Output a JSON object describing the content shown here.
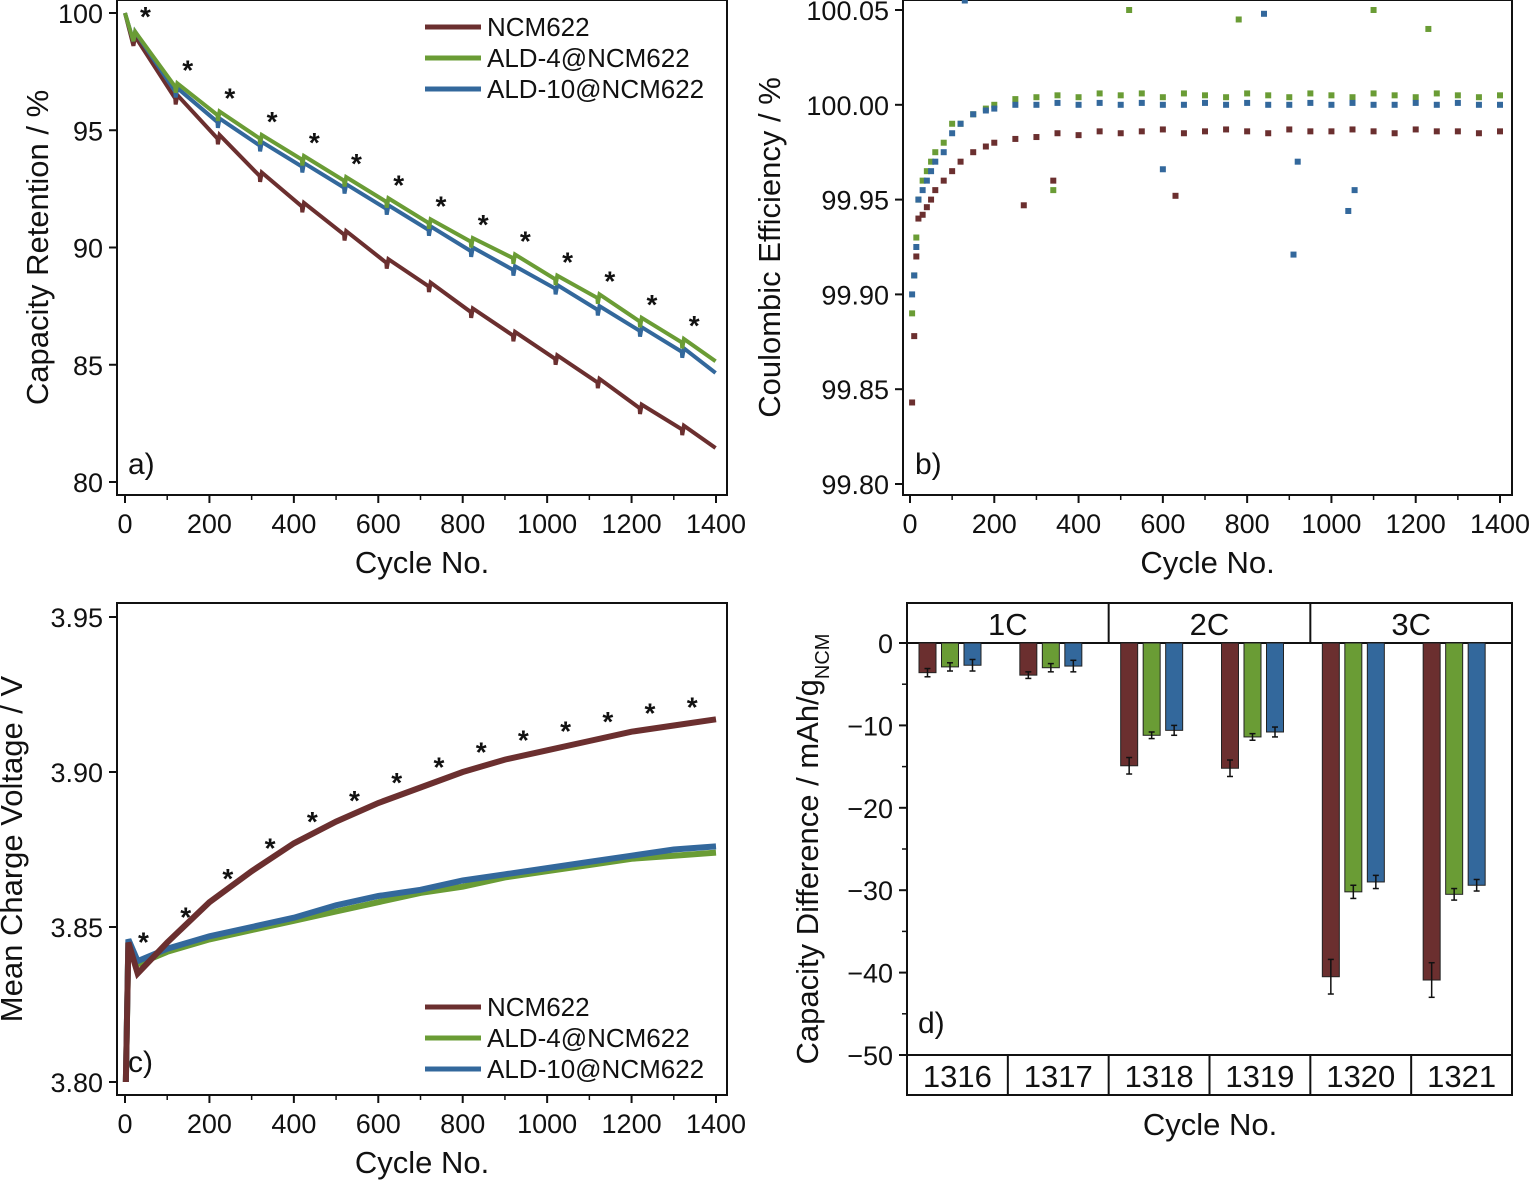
{
  "colors": {
    "NCM622": "#6b2f2f",
    "ALD-4@NCM622": "#6a9c35",
    "ALD-10@NCM622": "#33689c"
  },
  "chart_data": [
    {
      "panel": "a)",
      "type": "line",
      "xlabel": "Cycle No.",
      "ylabel": "Capacity Retention / %",
      "xlim": [
        0,
        1400
      ],
      "ylim": [
        80,
        100
      ],
      "xticks": [
        0,
        200,
        400,
        600,
        800,
        1000,
        1200,
        1400
      ],
      "yticks": [
        80,
        85,
        90,
        95,
        100
      ],
      "legend": "top-right",
      "asterisk_cycles": [
        20,
        120,
        220,
        320,
        420,
        520,
        620,
        720,
        820,
        920,
        1020,
        1120,
        1220,
        1320
      ],
      "segment_start_cycles": [
        20,
        120,
        220,
        320,
        420,
        520,
        620,
        720,
        820,
        920,
        1020,
        1120,
        1220,
        1320,
        1400
      ],
      "series": [
        {
          "name": "NCM622",
          "values": [
            99.0,
            96.5,
            94.8,
            93.2,
            91.9,
            90.7,
            89.5,
            88.5,
            87.4,
            86.4,
            85.4,
            84.4,
            83.3,
            82.4,
            81.6
          ]
        },
        {
          "name": "ALD-4@NCM622",
          "values": [
            99.2,
            97.0,
            95.8,
            94.8,
            93.9,
            93.0,
            92.1,
            91.2,
            90.4,
            89.7,
            88.8,
            88.0,
            87.0,
            86.1,
            85.3
          ]
        },
        {
          "name": "ALD-10@NCM622",
          "values": [
            99.2,
            96.8,
            95.5,
            94.5,
            93.6,
            92.7,
            91.8,
            90.9,
            90.0,
            89.2,
            88.4,
            87.5,
            86.6,
            85.7,
            84.8
          ]
        }
      ]
    },
    {
      "panel": "b)",
      "type": "scatter",
      "xlabel": "Cycle No.",
      "ylabel": "Coulombic Efficiency / %",
      "xlim": [
        0,
        1400
      ],
      "ylim": [
        99.8,
        100.05
      ],
      "xticks": [
        0,
        200,
        400,
        600,
        800,
        1000,
        1200,
        1400
      ],
      "yticks": [
        "99.80",
        "99.85",
        "99.90",
        "99.95",
        "100.00",
        "100.05"
      ],
      "x": [
        5,
        10,
        15,
        20,
        30,
        40,
        50,
        60,
        80,
        100,
        120,
        150,
        180,
        200,
        250,
        300,
        350,
        400,
        450,
        500,
        550,
        600,
        650,
        700,
        750,
        800,
        850,
        900,
        950,
        1000,
        1050,
        1100,
        1150,
        1200,
        1250,
        1300,
        1350,
        1400
      ],
      "series": [
        {
          "name": "NCM622",
          "values": [
            99.843,
            99.878,
            99.92,
            99.94,
            99.942,
            99.946,
            99.95,
            99.955,
            99.96,
            99.965,
            99.97,
            99.975,
            99.978,
            99.98,
            99.982,
            99.983,
            99.985,
            99.984,
            99.986,
            99.985,
            99.986,
            99.987,
            99.985,
            99.986,
            99.987,
            99.986,
            99.985,
            99.987,
            99.986,
            99.986,
            99.987,
            99.986,
            99.985,
            99.987,
            99.986,
            99.986,
            99.985,
            99.986
          ],
          "outliers": [
            [
              270,
              99.947
            ],
            [
              630,
              99.952
            ],
            [
              340,
              99.96
            ]
          ]
        },
        {
          "name": "ALD-4@NCM622",
          "values": [
            99.89,
            99.91,
            99.93,
            99.95,
            99.96,
            99.965,
            99.97,
            99.975,
            99.98,
            99.99,
            99.99,
            99.995,
            99.998,
            100.0,
            100.003,
            100.004,
            100.005,
            100.004,
            100.006,
            100.005,
            100.006,
            100.004,
            100.006,
            100.005,
            100.004,
            100.006,
            100.005,
            100.004,
            100.006,
            100.005,
            100.004,
            100.006,
            100.005,
            100.004,
            100.006,
            100.005,
            100.004,
            100.005
          ],
          "outliers": [
            [
              520,
              100.05
            ],
            [
              1100,
              100.05
            ],
            [
              340,
              99.955
            ],
            [
              780,
              100.045
            ],
            [
              1230,
              100.04
            ]
          ]
        },
        {
          "name": "ALD-10@NCM622",
          "values": [
            99.9,
            99.91,
            99.925,
            99.95,
            99.955,
            99.96,
            99.965,
            99.97,
            99.975,
            99.985,
            99.99,
            99.995,
            99.997,
            99.998,
            100.0,
            100.0,
            100.001,
            100.0,
            100.001,
            100.0,
            100.001,
            100.0,
            100.0,
            100.001,
            100.0,
            100.001,
            100.0,
            100.0,
            100.001,
            100.0,
            100.001,
            100.0,
            100.0,
            100.001,
            100.0,
            100.001,
            100.0,
            100.0
          ],
          "outliers": [
            [
              910,
              99.921
            ],
            [
              1040,
              99.944
            ],
            [
              1055,
              99.955
            ],
            [
              600,
              99.966
            ],
            [
              920,
              99.97
            ],
            [
              130,
              100.055
            ],
            [
              840,
              100.048
            ]
          ]
        }
      ]
    },
    {
      "panel": "c)",
      "type": "line",
      "xlabel": "Cycle No.",
      "ylabel": "Mean Charge Voltage / V",
      "xlim": [
        0,
        1400
      ],
      "ylim": [
        3.8,
        3.95
      ],
      "xticks": [
        0,
        200,
        400,
        600,
        800,
        1000,
        1200,
        1400
      ],
      "yticks": [
        "3.80",
        "3.85",
        "3.90",
        "3.95"
      ],
      "legend": "bottom-right",
      "asterisk_cycles": [
        20,
        120,
        220,
        320,
        420,
        520,
        620,
        720,
        820,
        920,
        1020,
        1120,
        1220,
        1320
      ],
      "x": [
        2,
        8,
        30,
        100,
        200,
        300,
        400,
        500,
        600,
        700,
        800,
        900,
        1000,
        1100,
        1200,
        1300,
        1400
      ],
      "series": [
        {
          "name": "NCM622",
          "values": [
            3.8,
            3.845,
            3.835,
            3.845,
            3.858,
            3.868,
            3.877,
            3.884,
            3.89,
            3.895,
            3.9,
            3.904,
            3.907,
            3.91,
            3.913,
            3.915,
            3.917
          ]
        },
        {
          "name": "ALD-4@NCM622",
          "values": [
            3.8,
            3.845,
            3.838,
            3.842,
            3.846,
            3.849,
            3.852,
            3.855,
            3.858,
            3.861,
            3.863,
            3.866,
            3.868,
            3.87,
            3.872,
            3.873,
            3.874
          ]
        },
        {
          "name": "ALD-10@NCM622",
          "values": [
            3.8,
            3.846,
            3.839,
            3.843,
            3.847,
            3.85,
            3.853,
            3.857,
            3.86,
            3.862,
            3.865,
            3.867,
            3.869,
            3.871,
            3.873,
            3.875,
            3.876
          ]
        }
      ]
    },
    {
      "panel": "d)",
      "type": "bar",
      "xlabel": "Cycle No.",
      "ylabel": "Capacity Difference / mAh/g",
      "ylabel_sub": "NCM",
      "ylim": [
        -50,
        0
      ],
      "yticks": [
        "0",
        "−10",
        "−20",
        "−30",
        "−40",
        "−50"
      ],
      "groups": [
        "1C",
        "2C",
        "3C"
      ],
      "categories": [
        "1316",
        "1317",
        "1318",
        "1319",
        "1320",
        "1321"
      ],
      "series": [
        {
          "name": "NCM622",
          "values": [
            -3.6,
            -3.9,
            -14.9,
            -15.2,
            -40.5,
            -40.9
          ],
          "errors": [
            0.5,
            0.4,
            1.0,
            1.0,
            2.1,
            2.1
          ]
        },
        {
          "name": "ALD-4@NCM622",
          "values": [
            -2.9,
            -3.0,
            -11.2,
            -11.4,
            -30.2,
            -30.5
          ],
          "errors": [
            0.5,
            0.5,
            0.4,
            0.4,
            0.8,
            0.7
          ]
        },
        {
          "name": "ALD-10@NCM622",
          "values": [
            -2.7,
            -2.8,
            -10.6,
            -10.8,
            -29.0,
            -29.4
          ],
          "errors": [
            0.7,
            0.7,
            0.6,
            0.6,
            0.8,
            0.7
          ]
        }
      ]
    }
  ]
}
